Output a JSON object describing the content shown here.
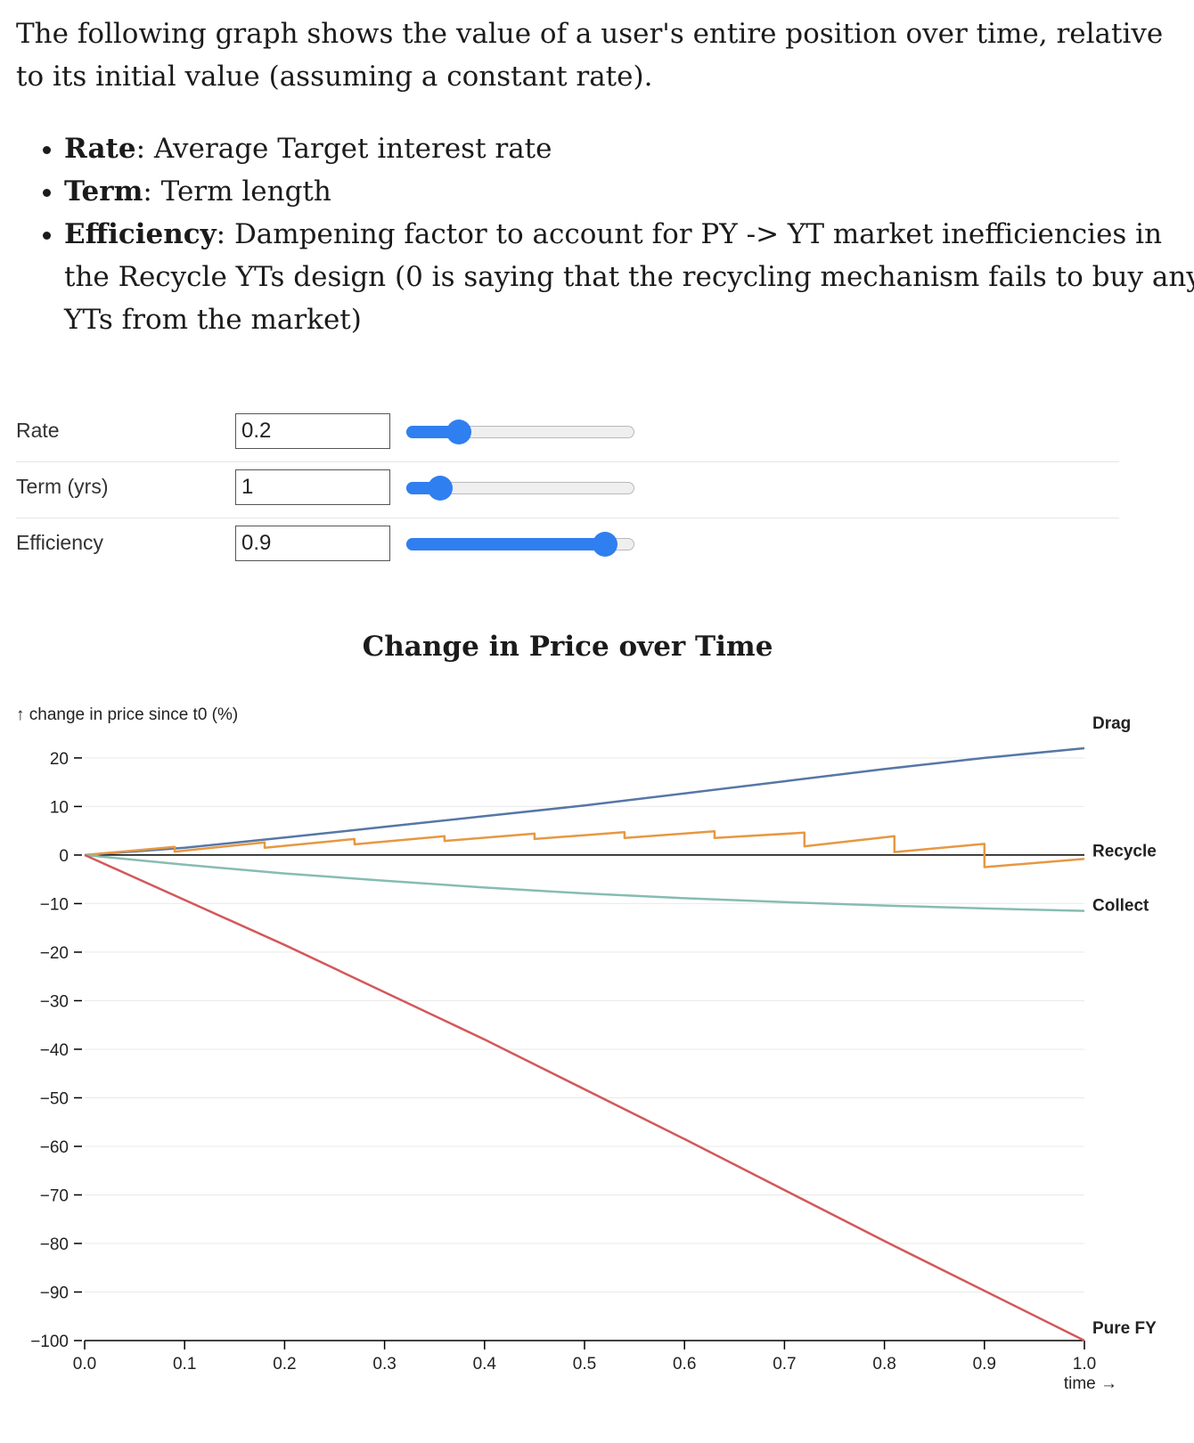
{
  "intro": {
    "text": "The following graph shows the value of a user's entire position over time, relative to its initial value (assuming a constant rate).",
    "bullets": [
      {
        "term": "Rate",
        "desc": ": Average Target interest rate"
      },
      {
        "term": "Term",
        "desc": ": Term length"
      },
      {
        "term": "Efficiency",
        "desc": ": Dampening factor to account for PY -> YT market inefficiencies in the Recycle YTs design (0 is saying that the recycling mechanism fails to buy any YTs from the market)"
      }
    ]
  },
  "controls": [
    {
      "label": "Rate",
      "value": "0.2",
      "slider_fraction": 0.23
    },
    {
      "label": "Term (yrs)",
      "value": "1",
      "slider_fraction": 0.15
    },
    {
      "label": "Efficiency",
      "value": "0.9",
      "slider_fraction": 0.87
    }
  ],
  "colors": {
    "accent": "#2f7ff0",
    "drag": "#5677a6",
    "recycle": "#e69843",
    "collect": "#87bcb1",
    "pure_fy": "#d3585a",
    "zero_line": "#000000",
    "grid": "#e9e9e9"
  },
  "chart_data": {
    "type": "line",
    "title": "Change in Price over Time",
    "ylabel": "↑ change in price since t0 (%)",
    "xlabel": "time →",
    "xlim": [
      0.0,
      1.0
    ],
    "ylim": [
      -100,
      22
    ],
    "x_ticks": [
      "0.0",
      "0.1",
      "0.2",
      "0.3",
      "0.4",
      "0.5",
      "0.6",
      "0.7",
      "0.8",
      "0.9",
      "1.0"
    ],
    "y_ticks": [
      "20",
      "10",
      "0",
      "−10",
      "−20",
      "−30",
      "−40",
      "−50",
      "−60",
      "−70",
      "−80",
      "−90",
      "−100"
    ],
    "y_tick_values": [
      20,
      10,
      0,
      -10,
      -20,
      -30,
      -40,
      -50,
      -60,
      -70,
      -80,
      -90,
      -100
    ],
    "grid": true,
    "legend": "end-of-line labels",
    "series": [
      {
        "name": "Drag",
        "x": [
          0,
          0.1,
          0.2,
          0.3,
          0.4,
          0.5,
          0.6,
          0.7,
          0.8,
          0.9,
          1.0
        ],
        "y": [
          0,
          1.5,
          3.6,
          5.8,
          8.0,
          10.2,
          12.7,
          15.2,
          17.7,
          20.0,
          22.0
        ]
      },
      {
        "name": "Recycle",
        "x": [
          0,
          0.09,
          0.09,
          0.18,
          0.18,
          0.27,
          0.27,
          0.36,
          0.36,
          0.45,
          0.45,
          0.54,
          0.54,
          0.63,
          0.63,
          0.72,
          0.72,
          0.81,
          0.81,
          0.9,
          0.9,
          1.0
        ],
        "y": [
          0,
          1.7,
          0.7,
          2.6,
          1.5,
          3.3,
          2.2,
          3.9,
          2.9,
          4.4,
          3.3,
          4.7,
          3.5,
          4.9,
          3.5,
          4.6,
          1.8,
          3.9,
          0.6,
          2.3,
          -2.5,
          -0.8
        ]
      },
      {
        "name": "Collect",
        "x": [
          0,
          0.1,
          0.2,
          0.3,
          0.4,
          0.5,
          0.6,
          0.7,
          0.8,
          0.9,
          1.0
        ],
        "y": [
          0,
          -2.0,
          -3.8,
          -5.3,
          -6.7,
          -7.9,
          -8.9,
          -9.7,
          -10.4,
          -11.0,
          -11.5
        ]
      },
      {
        "name": "Pure FY",
        "x": [
          0,
          0.2,
          0.4,
          0.6,
          0.8,
          1.0
        ],
        "y": [
          0,
          -18.5,
          -38.0,
          -58.5,
          -79.5,
          -100.0
        ]
      }
    ]
  }
}
